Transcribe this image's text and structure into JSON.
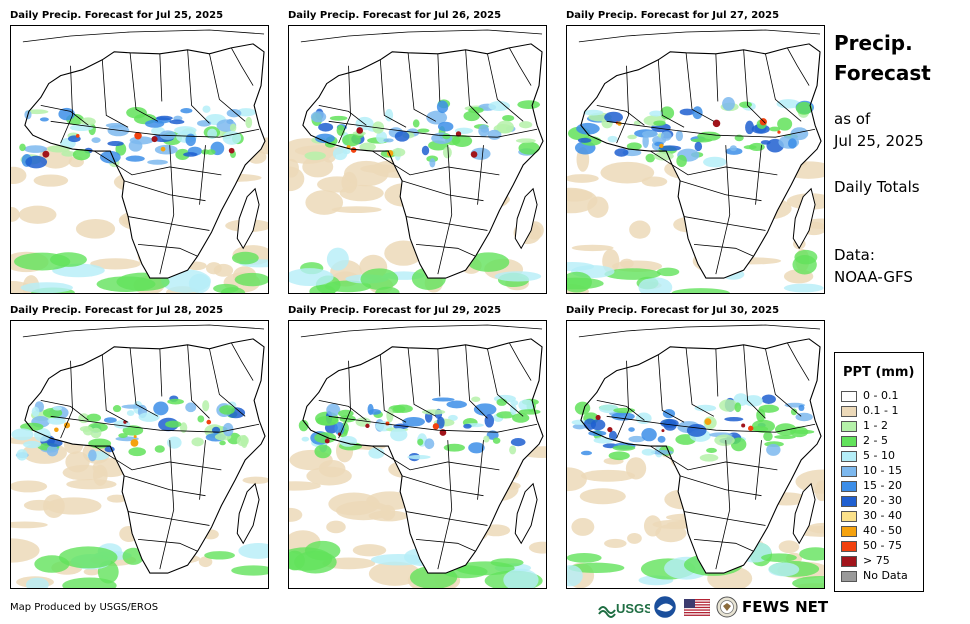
{
  "panels": [
    {
      "title": "Daily Precip. Forecast for Jul 25, 2025"
    },
    {
      "title": "Daily Precip. Forecast for Jul 26, 2025"
    },
    {
      "title": "Daily Precip. Forecast for Jul 27, 2025"
    },
    {
      "title": "Daily Precip. Forecast for Jul 28, 2025"
    },
    {
      "title": "Daily Precip. Forecast for Jul 29, 2025"
    },
    {
      "title": "Daily Precip. Forecast for Jul 30, 2025"
    }
  ],
  "sidebar": {
    "title_line1": "Precip.",
    "title_line2": "Forecast",
    "asof_line1": "as of",
    "asof_line2": "Jul 25, 2025",
    "totals": "Daily Totals",
    "data_line1": "Data:",
    "data_line2": "NOAA-GFS"
  },
  "legend": {
    "title": "PPT (mm)",
    "items": [
      {
        "label": "0 - 0.1",
        "color": "#ffffff"
      },
      {
        "label": "0.1 - 1",
        "color": "#ecd9b9"
      },
      {
        "label": "1 - 2",
        "color": "#b5f1a9"
      },
      {
        "label": "2 - 5",
        "color": "#62e25b"
      },
      {
        "label": "5 - 10",
        "color": "#b5eef8"
      },
      {
        "label": "10 - 15",
        "color": "#7db8ee"
      },
      {
        "label": "15 - 20",
        "color": "#3c8ee8"
      },
      {
        "label": "20 - 30",
        "color": "#1f5fd0"
      },
      {
        "label": "30 - 40",
        "color": "#fbe18a"
      },
      {
        "label": "40 - 50",
        "color": "#f5a20e"
      },
      {
        "label": "50 - 75",
        "color": "#f2420f"
      },
      {
        "label": "> 75",
        "color": "#a1141b"
      },
      {
        "label": "No Data",
        "color": "#9a9a9a"
      }
    ]
  },
  "footer": {
    "credit": "Map Produced by USGS/EROS",
    "usgs": "USGS",
    "fews": "FEWS NET"
  }
}
